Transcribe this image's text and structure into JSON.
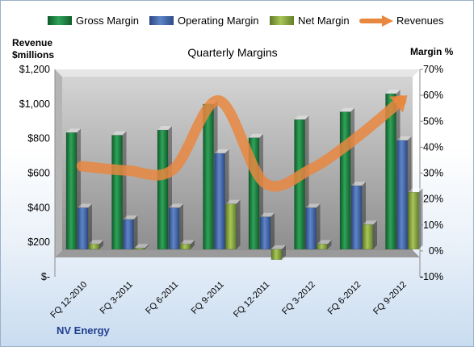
{
  "chart_data": {
    "type": "bar",
    "title": "Quarterly Margins",
    "categories": [
      "FQ 12-2010",
      "FQ 3-2011",
      "FQ 6-2011",
      "FQ 9-2011",
      "FQ 12-2011",
      "FQ 3-2012",
      "FQ 6-2012",
      "FQ 9-2012"
    ],
    "series": [
      {
        "name": "Gross Margin",
        "axis": "right",
        "color": "#1f7a3c",
        "values": [
          45,
          44,
          46,
          56,
          43,
          50,
          53,
          60
        ]
      },
      {
        "name": "Operating Margin",
        "axis": "right",
        "color": "#3f5f9f",
        "values": [
          16,
          11.5,
          16,
          37,
          12.5,
          16,
          24.5,
          42
        ]
      },
      {
        "name": "Net Margin",
        "axis": "right",
        "color": "#8aa63f",
        "values": [
          2,
          0.5,
          2,
          17.5,
          -4,
          2,
          9.5,
          22
        ]
      },
      {
        "name": "Revenues",
        "axis": "left",
        "type": "line",
        "color": "#e8873f",
        "values": [
          640,
          615,
          620,
          1020,
          545,
          620,
          800,
          1020
        ]
      }
    ],
    "left_axis": {
      "label_line1": "Revenue",
      "label_line2": "$millions",
      "range": [
        0,
        1200
      ],
      "ticks": [
        "$-",
        "$200",
        "$400",
        "$600",
        "$800",
        "$1,000",
        "$1,200"
      ]
    },
    "right_axis": {
      "label": "Margin %",
      "range": [
        -10,
        70
      ],
      "ticks": [
        "-10%",
        "0%",
        "10%",
        "20%",
        "30%",
        "40%",
        "50%",
        "60%",
        "70%"
      ]
    },
    "legend_position": "top",
    "grid": false
  },
  "branding": "NV Energy"
}
